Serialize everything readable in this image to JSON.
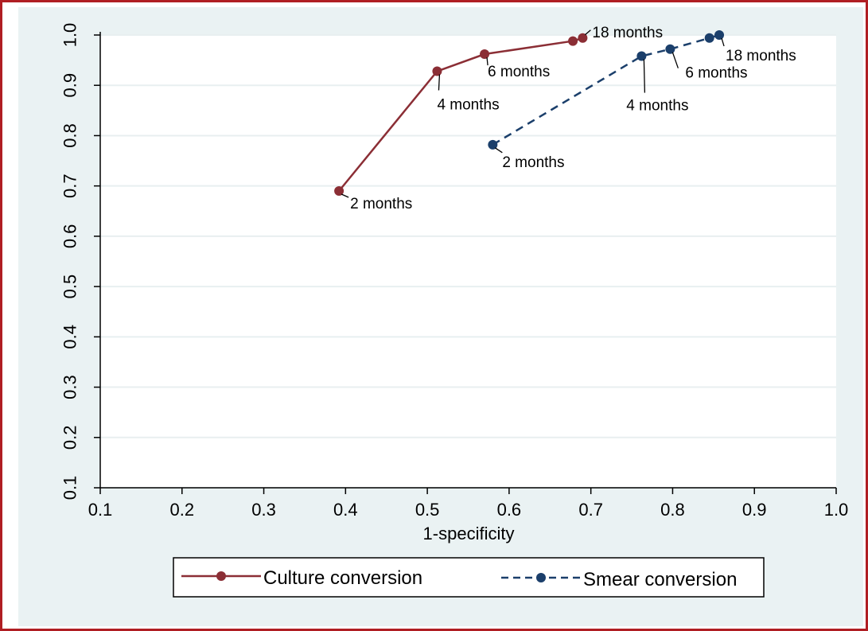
{
  "chart_data": {
    "type": "line",
    "title": "",
    "xlabel": "1-specificity",
    "ylabel": "",
    "xlim": [
      0.1,
      1.0
    ],
    "ylim": [
      0.1,
      1.0
    ],
    "x_ticks": [
      "0.1",
      "0.2",
      "0.3",
      "0.4",
      "0.5",
      "0.6",
      "0.7",
      "0.8",
      "0.9",
      "1.0"
    ],
    "y_ticks": [
      "0.1",
      "0.2",
      "0.3",
      "0.4",
      "0.5",
      "0.6",
      "0.7",
      "0.8",
      "0.9",
      "1.0"
    ],
    "grid": "horizontal",
    "legend_position": "bottom",
    "series": [
      {
        "name": "Culture conversion",
        "color": "#8b2e35",
        "line_style": "solid",
        "points": [
          {
            "x": 0.392,
            "y": 0.69,
            "label": "2 months"
          },
          {
            "x": 0.512,
            "y": 0.928,
            "label": "4 months"
          },
          {
            "x": 0.57,
            "y": 0.962,
            "label": "6 months"
          },
          {
            "x": 0.678,
            "y": 0.988,
            "label": ""
          },
          {
            "x": 0.69,
            "y": 0.994,
            "label": "18 months"
          }
        ]
      },
      {
        "name": "Smear conversion",
        "color": "#1b3f6b",
        "line_style": "dashed",
        "points": [
          {
            "x": 0.58,
            "y": 0.782,
            "label": "2 months"
          },
          {
            "x": 0.762,
            "y": 0.958,
            "label": "4 months"
          },
          {
            "x": 0.797,
            "y": 0.972,
            "label": "6 months"
          },
          {
            "x": 0.845,
            "y": 0.994,
            "label": ""
          },
          {
            "x": 0.857,
            "y": 1.0,
            "label": "18 months"
          }
        ]
      }
    ]
  }
}
